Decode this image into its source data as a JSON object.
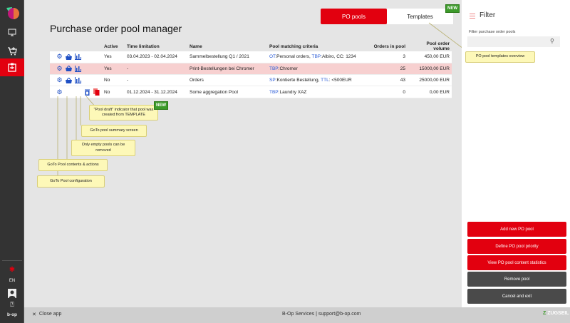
{
  "sidebar": {
    "language": "EN",
    "brand": "b-op",
    "icons": [
      "app-logo",
      "monitor-icon",
      "cart-icon",
      "po-pool-icon",
      "notification-icon",
      "user-icon",
      "help-icon"
    ]
  },
  "header": {
    "title": "Purchase order pool manager",
    "tabs": [
      {
        "label": "PO pools",
        "active": true
      },
      {
        "label": "Templates",
        "badge": "NEW"
      }
    ]
  },
  "table": {
    "columns": [
      "",
      "Active",
      "Time limitation",
      "Name",
      "Pool matching criteria",
      "Orders in pool",
      "Pool order volume"
    ],
    "rows": [
      {
        "active": "Yes",
        "time": "03.04.2023 - 02.04.2024",
        "name": "Sammelbestellung Q1 / 2021",
        "criteria": [
          {
            "k": "OT",
            "v": ":Personal orders, "
          },
          {
            "k": "TBP",
            "v": ":Albiro, CC: 1234"
          }
        ],
        "orders": "3",
        "volume": "450,00 EUR"
      },
      {
        "active": "Yes",
        "time": "-",
        "name": "Print-Bestellungen bei Chromer",
        "criteria": [
          {
            "k": "TBP",
            "v": ":Chromer"
          }
        ],
        "orders": "25",
        "volume": "15000,00 EUR",
        "highlight": true
      },
      {
        "active": "No",
        "time": "-",
        "name": "Orders",
        "criteria": [
          {
            "k": "SP",
            "v": ":Kontierte Bestellung, "
          },
          {
            "k": "TTL",
            "v": ": <500EUR"
          }
        ],
        "orders": "43",
        "volume": "25000,00 EUR"
      },
      {
        "active": "No",
        "time": "01.12.2024 - 31.12.2024",
        "name": "Some aggregation Pool",
        "criteria": [
          {
            "k": "TBP",
            "v": ":Laundry XAZ"
          }
        ],
        "orders": "0",
        "volume": "0,00 EUR",
        "draft": true
      }
    ]
  },
  "callouts": {
    "draft": "\"Pool draft\" indicator that pool was created from TEMPLATE",
    "draft_badge": "NEW",
    "summary": "GoTo pool summary screen",
    "remove": "Only empty pools can be removed",
    "contents": "GoTo Pool contents & actions",
    "config": "GoTo Pool configuration",
    "templates": "PO pool templates overview"
  },
  "filter": {
    "title": "Filter",
    "label": "Filter purchase order pools",
    "placeholder": ""
  },
  "actions": [
    "Add new PO pool",
    "Define PO pool priority",
    "View PO pool content statistics",
    "Remove pool",
    "Cancel and exit"
  ],
  "footer": {
    "close": "Close app",
    "support": "B-Op Services | support@b-op.com",
    "brand": "ZUGSEIL"
  },
  "colors": {
    "accent": "#e2000f",
    "link": "#2a5bd7",
    "highlight": "#f7d0d0"
  }
}
